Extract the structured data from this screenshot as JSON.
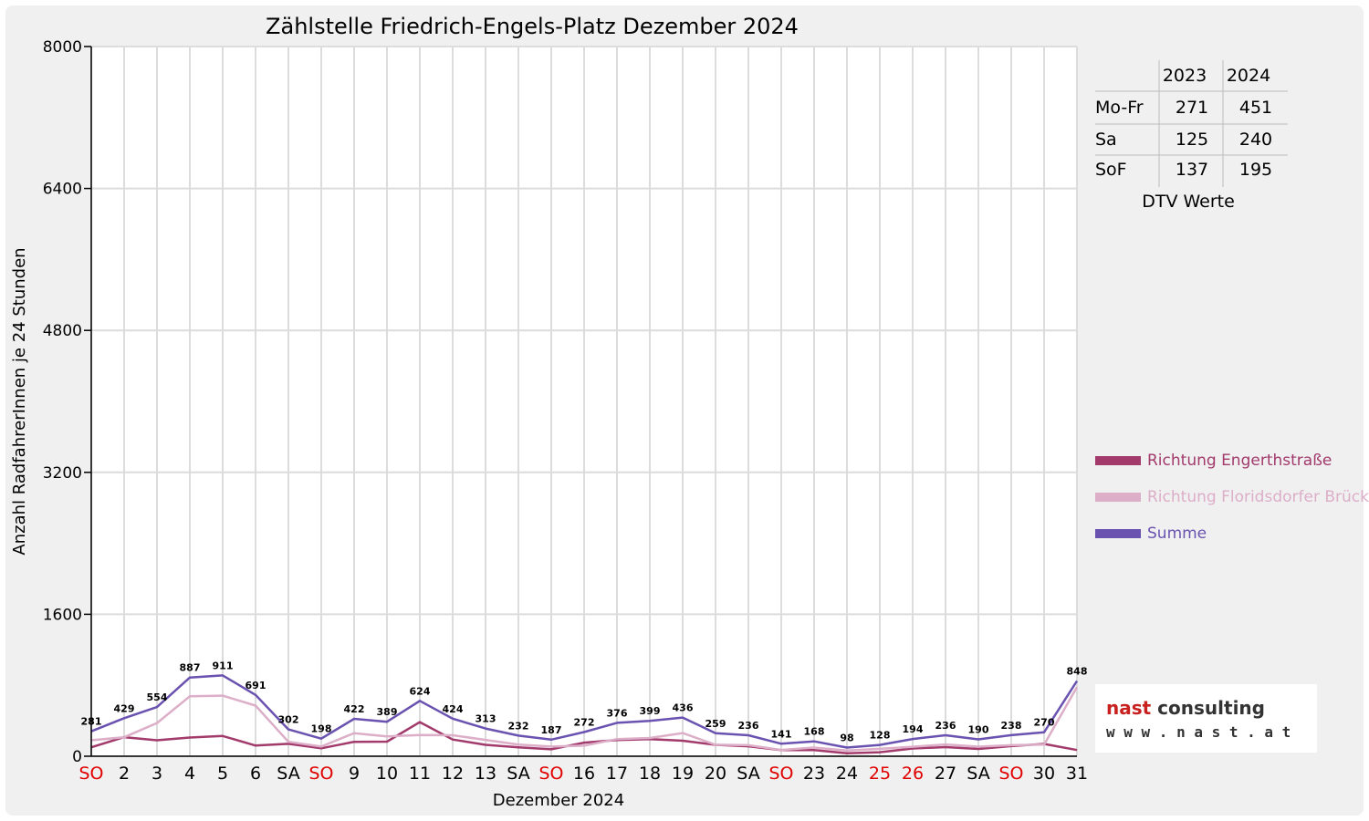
{
  "colors": {
    "engerth": "#a23a6c",
    "floridsdorf": "#dcaec8",
    "summe": "#6a52b0",
    "weekend_red": "#e00000",
    "grid": "#dcdcdc",
    "logo_red": "#c8201e"
  },
  "chart_data": {
    "type": "line",
    "title": "Zählstelle Friedrich-Engels-Platz Dezember 2024",
    "xlabel": "Dezember 2024",
    "ylabel": "Anzahl RadfahrerInnen je 24 Stunden",
    "ylim": [
      0,
      8000
    ],
    "yticks": [
      "0",
      "1600",
      "3200",
      "4800",
      "6400",
      "8000"
    ],
    "grid": true,
    "legend_position": "right",
    "categories": [
      "SO",
      "2",
      "3",
      "4",
      "5",
      "6",
      "SA",
      "SO",
      "9",
      "10",
      "11",
      "12",
      "13",
      "SA",
      "SO",
      "16",
      "17",
      "18",
      "19",
      "20",
      "SA",
      "SO",
      "23",
      "24",
      "25",
      "26",
      "27",
      "SA",
      "SO",
      "30",
      "31"
    ],
    "red_categories": [
      0,
      7,
      14,
      21,
      24,
      25,
      28
    ],
    "series": [
      {
        "name": "Richtung Engerthstraße",
        "color_key": "engerth",
        "values": [
          101,
          215,
          180,
          211,
          228,
          120,
          140,
          89,
          162,
          165,
          385,
          188,
          129,
          100,
          78,
          153,
          183,
          193,
          175,
          129,
          112,
          70,
          70,
          33,
          45,
          87,
          103,
          82,
          114,
          139,
          70
        ]
      },
      {
        "name": "Richtung Floridsdorfer Brücke",
        "color_key": "floridsdorf",
        "values": [
          180,
          214,
          374,
          676,
          683,
          571,
          162,
          109,
          260,
          224,
          239,
          236,
          184,
          132,
          109,
          119,
          193,
          206,
          261,
          130,
          124,
          71,
          98,
          65,
          83,
          107,
          133,
          108,
          124,
          131,
          778
        ]
      },
      {
        "name": "Summe",
        "color_key": "summe",
        "values": [
          281,
          429,
          554,
          887,
          911,
          691,
          302,
          198,
          422,
          389,
          624,
          424,
          313,
          232,
          187,
          272,
          376,
          399,
          436,
          259,
          236,
          141,
          168,
          98,
          128,
          194,
          236,
          190,
          238,
          270,
          848
        ]
      }
    ],
    "data_labels": [
      "281",
      "429",
      "554",
      "887",
      "911",
      "691",
      "302",
      "198",
      "422",
      "389",
      "624",
      "424",
      "313",
      "232",
      "187",
      "272",
      "376",
      "399",
      "436",
      "259",
      "236",
      "141",
      "168",
      "98",
      "128",
      "194",
      "236",
      "190",
      "238",
      "270",
      "848"
    ]
  },
  "dtv_table": {
    "columns": [
      "2023",
      "2024"
    ],
    "rows": [
      {
        "label": "Mo-Fr",
        "v2023": "271",
        "v2024": "451"
      },
      {
        "label": "Sa",
        "v2023": "125",
        "v2024": "240"
      },
      {
        "label": "SoF",
        "v2023": "137",
        "v2024": "195"
      }
    ],
    "caption": "DTV Werte"
  },
  "logo": {
    "line1": "nast consulting",
    "line2": "w w w . n a s t . a t"
  }
}
